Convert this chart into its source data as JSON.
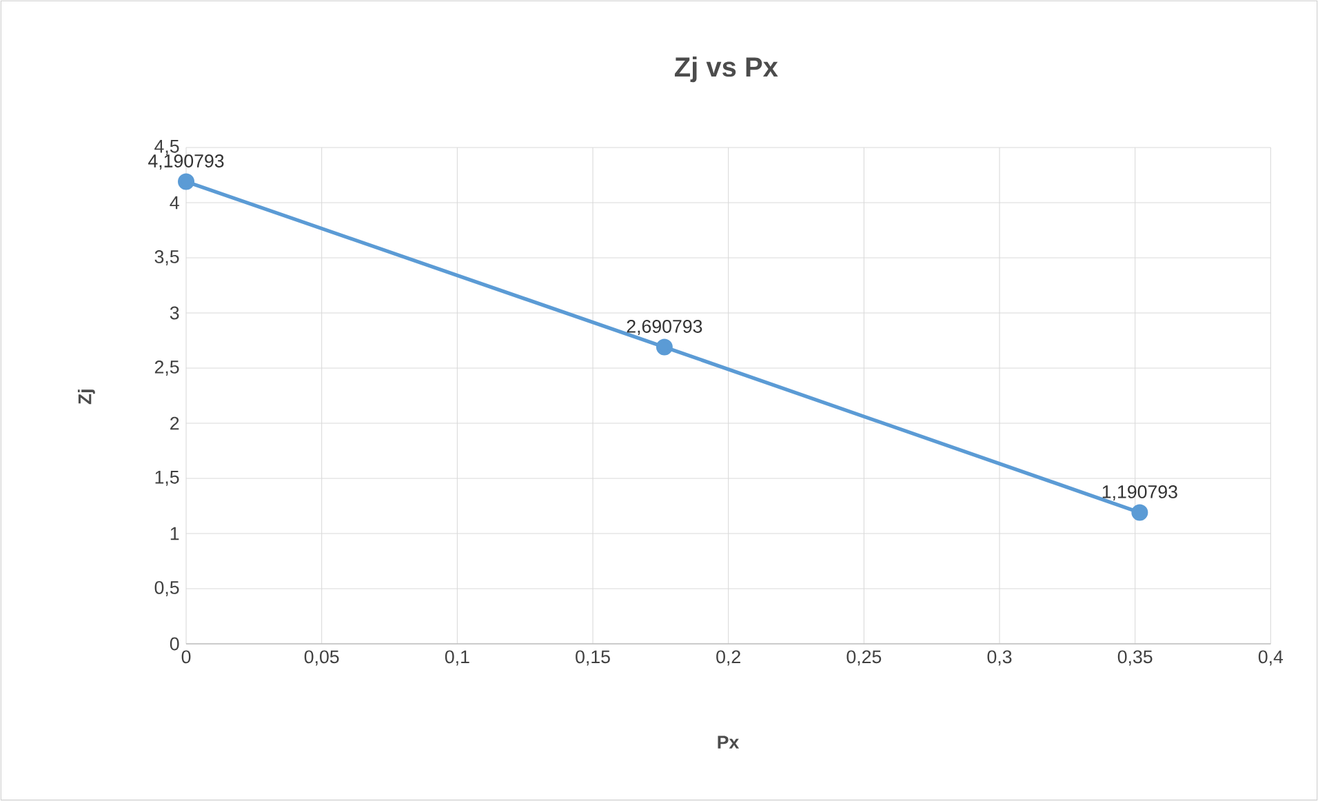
{
  "chart_data": {
    "type": "line",
    "title": "Zj vs Px",
    "xlabel": "Px",
    "ylabel": "Zj",
    "x": [
      0,
      0.1764,
      0.3517
    ],
    "values": [
      4.190793,
      2.690793,
      1.190793
    ],
    "value_labels": [
      "4,190793",
      "2,690793",
      "1,190793"
    ],
    "color": "#5b9bd5",
    "marker": "circle",
    "line_style": "solid",
    "grid": true,
    "xlim": [
      0,
      0.4
    ],
    "ylim": [
      0,
      4.5
    ],
    "xticks": [
      0,
      {
        "value": 0.05,
        "label": "0,05"
      },
      {
        "value": 0.1,
        "label": "0,1"
      },
      {
        "value": 0.15,
        "label": "0,15"
      },
      {
        "value": 0.2,
        "label": "0,2"
      },
      {
        "value": 0.25,
        "label": "0,25"
      },
      {
        "value": 0.3,
        "label": "0,3"
      },
      {
        "value": 0.35,
        "label": "0,35"
      },
      {
        "value": 0.4,
        "label": "0,4"
      }
    ],
    "yticks": [
      0,
      {
        "value": 0.5,
        "label": "0,5"
      },
      1,
      {
        "value": 1.5,
        "label": "1,5"
      },
      2,
      {
        "value": 2.5,
        "label": "2,5"
      },
      3,
      {
        "value": 3.5,
        "label": "3,5"
      },
      4,
      {
        "value": 4.5,
        "label": "4,5"
      }
    ]
  }
}
